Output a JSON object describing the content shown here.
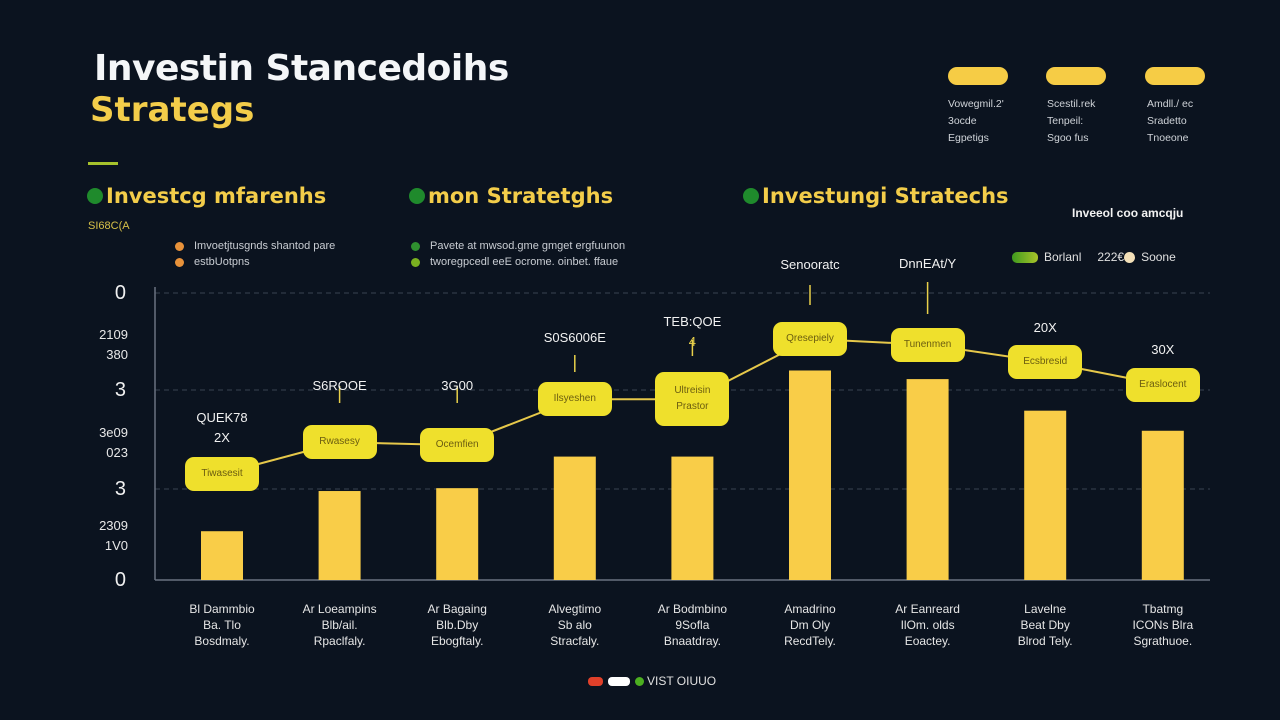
{
  "header": {
    "title_line1": "Investin Stancedoihs",
    "title_line2": "Strategs",
    "pills": [
      {
        "lines": [
          "Vowegmil.2'",
          "3ocde",
          "Egpetigs"
        ]
      },
      {
        "lines": [
          "Scestil.rek",
          "Tenpeil:",
          "Sgoo fus"
        ]
      },
      {
        "lines": [
          "Amdll./ ec",
          "Sradetto",
          "Tnoeone"
        ]
      }
    ]
  },
  "sections": [
    {
      "heading": "Investcg mfarenhs",
      "sub": "SI68C(A",
      "bullets": [
        "Imvoetjtusgnds shantod pare",
        "estbUotpns"
      ],
      "bullet_colors": [
        "#e8923a",
        "#e8923a"
      ]
    },
    {
      "heading": "mon Stratetghs",
      "bullets": [
        "Pavete at mwsod.gme gmget ergfuunon",
        "tworegpcedl eeE ocrome. oinbet. ffaue"
      ],
      "bullet_colors": [
        "#2f8f2f",
        "#7ab020"
      ]
    },
    {
      "heading": "Investungi Stratechs"
    }
  ],
  "legend_top": {
    "title": "Inveeol coo amcqju",
    "items": [
      {
        "label": "Borlanl",
        "color": "#6aa81e"
      },
      {
        "label": "222€",
        "color": ""
      },
      {
        "label": "Soone",
        "color": "#f3e0b8"
      }
    ]
  },
  "legend_bottom": {
    "label": "VIST OIUUO",
    "colors": [
      "#e0402a",
      "#ffffff",
      "#4caf20"
    ]
  },
  "colors": {
    "background": "#0b131f",
    "bar": "#f9cd48",
    "line_box": "#efe02c",
    "line": "#e6c84a",
    "title_accent": "#f3cd4a"
  },
  "chart_data": {
    "type": "bar",
    "ylim": [
      0,
      100
    ],
    "grid": true,
    "y_tick_labels": [
      "0",
      "2109 380",
      "3",
      "3e09 023",
      "3",
      "2309 1V0",
      "0"
    ],
    "categories": [
      [
        "Bl Dammbio",
        "Ba. Tlo",
        "Bosdmaly."
      ],
      [
        "Ar Loeampins",
        "Blb/ail.",
        "Rpaclfaly."
      ],
      [
        "Ar Bagaing",
        "Blb.Dby",
        "Ebogftaly."
      ],
      [
        "Alvegtimo",
        "Sb alo",
        "Stracfaly."
      ],
      [
        "Ar Bodmbino",
        "9Sofla",
        "Bnaatdray."
      ],
      [
        "Amadrino",
        "Dm Oly",
        "RecdTely."
      ],
      [
        "Ar Eanreard",
        "IlOm. olds",
        "Eoactey."
      ],
      [
        "Lavelne",
        "Beat Dby",
        "Blrod Tely."
      ],
      [
        "Tbatmg",
        "ICONs Blra",
        "Sgrathuoe."
      ]
    ],
    "series": [
      {
        "type": "bar",
        "values": [
          17,
          31,
          32,
          43,
          43,
          73,
          70,
          59,
          52
        ]
      },
      {
        "type": "line",
        "values": [
          37,
          48,
          47,
          63,
          63,
          84,
          82,
          76,
          68
        ],
        "point_labels": [
          "Tiwasesit",
          "Rwasesy",
          "Ocemfien",
          "Ilsyeshen",
          "Ultreisin Prastor",
          "Qresepiely",
          "Tunenmen",
          "Ecsbresid",
          "Eraslocent"
        ]
      }
    ],
    "annotations": [
      [
        "QUEK78",
        "2X"
      ],
      [
        "S6ROOE"
      ],
      [
        "3G00"
      ],
      [
        "S0S6006E"
      ],
      [
        "TEB:QOE",
        "4"
      ],
      [
        "Senooratc"
      ],
      [
        "DnnEAt/Y"
      ],
      [
        "20X"
      ],
      [
        "30X"
      ]
    ]
  }
}
